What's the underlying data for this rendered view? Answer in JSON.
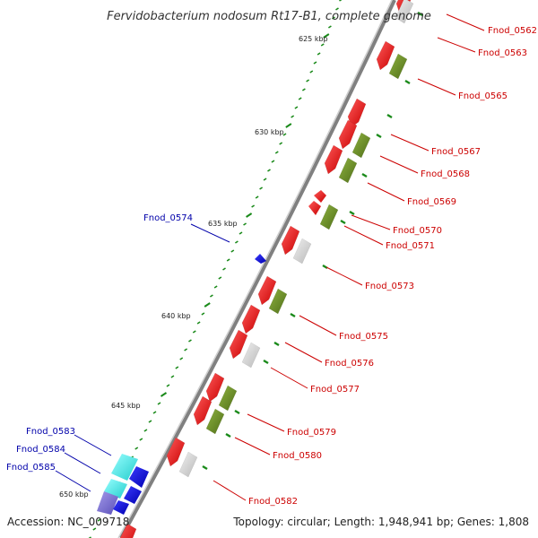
{
  "title": "Fervidobacterium nodosum Rt17-B1, complete genome",
  "ticks": [
    {
      "label": "625 kbp",
      "major": true
    },
    {
      "label": "630 kbp",
      "major": true
    },
    {
      "label": "635 kbp",
      "major": true
    },
    {
      "label": "640 kbp",
      "major": true
    },
    {
      "label": "645 kbp",
      "major": true
    },
    {
      "label": "650 kbp",
      "major": true
    }
  ],
  "genes_forward": [
    {
      "name": "Fnod_0562",
      "color": "#cc0000"
    },
    {
      "name": "Fnod_0563",
      "color": "#cc0000"
    },
    {
      "name": "Fnod_0565",
      "color": "#cc0000"
    },
    {
      "name": "Fnod_0567",
      "color": "#cc0000"
    },
    {
      "name": "Fnod_0568",
      "color": "#cc0000"
    },
    {
      "name": "Fnod_0569",
      "color": "#cc0000"
    },
    {
      "name": "Fnod_0570",
      "color": "#cc0000"
    },
    {
      "name": "Fnod_0571",
      "color": "#cc0000"
    },
    {
      "name": "Fnod_0573",
      "color": "#cc0000"
    },
    {
      "name": "Fnod_0575",
      "color": "#cc0000"
    },
    {
      "name": "Fnod_0576",
      "color": "#cc0000"
    },
    {
      "name": "Fnod_0577",
      "color": "#cc0000"
    },
    {
      "name": "Fnod_0579",
      "color": "#cc0000"
    },
    {
      "name": "Fnod_0580",
      "color": "#cc0000"
    },
    {
      "name": "Fnod_0582",
      "color": "#cc0000"
    }
  ],
  "genes_reverse": [
    {
      "name": "Fnod_0574",
      "color": "#0000aa"
    },
    {
      "name": "Fnod_0583",
      "color": "#0000aa"
    },
    {
      "name": "Fnod_0584",
      "color": "#0000aa"
    },
    {
      "name": "Fnod_0585",
      "color": "#0000aa"
    }
  ],
  "colors": {
    "forward_cds": "#e00000",
    "forward_cds_light": "#ff4d4d",
    "rrna_green": "#6b8e23",
    "grey_feature": "#c8c8c8",
    "reverse_cds": "#0000dd",
    "reverse_cyan": "#33dddd",
    "reverse_purple": "#7b6fd0",
    "backbone": "#777777",
    "tick": "#1a8a1a"
  },
  "footer": {
    "accession": "Accession: NC_009718",
    "stats": "Topology: circular; Length: 1,948,941 bp; Genes: 1,808"
  }
}
